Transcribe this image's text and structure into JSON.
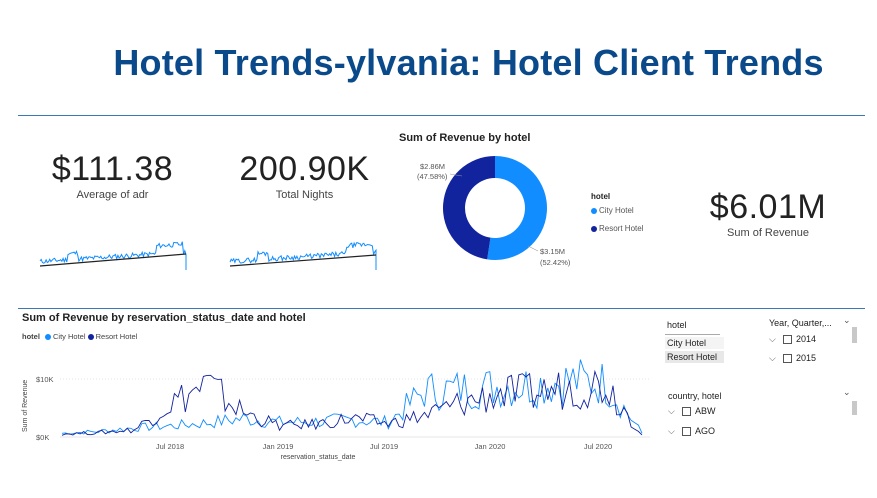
{
  "title": "Hotel Trends-ylvania: Hotel Client Trends",
  "colors": {
    "city": "#118DFF",
    "resort": "#12239E",
    "title": "#0a4a8b",
    "trend": "#222222"
  },
  "kpis": {
    "adr": {
      "value": "$111.38",
      "label": "Average of adr"
    },
    "nights": {
      "value": "200.90K",
      "label": "Total Nights"
    },
    "revenue": {
      "value": "$6.01M",
      "label": "Sum of Revenue"
    }
  },
  "donut": {
    "title": "Sum of Revenue by hotel",
    "legend_title": "hotel",
    "slices": [
      {
        "name": "City Hotel",
        "value_label": "$3.15M",
        "pct_label": "(52.42%)",
        "pct": 52.42
      },
      {
        "name": "Resort Hotel",
        "value_label": "$2.86M",
        "pct_label": "(47.58%)",
        "pct": 47.58
      }
    ]
  },
  "linechart": {
    "title": "Sum of Revenue by reservation_status_date and hotel",
    "legend_title": "hotel",
    "legend": [
      "City Hotel",
      "Resort Hotel"
    ],
    "ylabel": "Sum of Revenue",
    "xlabel": "reservation_status_date",
    "yticks": [
      "$10K",
      "$0K"
    ],
    "xticks": [
      "Jul 2018",
      "Jan 2019",
      "Jul 2019",
      "Jan 2020",
      "Jul 2020"
    ]
  },
  "chart_data": [
    {
      "type": "pie",
      "title": "Sum of Revenue by hotel",
      "categories": [
        "City Hotel",
        "Resort Hotel"
      ],
      "values": [
        3.15,
        2.86
      ],
      "unit": "$M"
    },
    {
      "type": "line",
      "title": "Sum of Revenue by reservation_status_date and hotel",
      "xlabel": "reservation_status_date",
      "ylabel": "Sum of Revenue",
      "x": [
        "2018-01",
        "2018-03",
        "2018-05",
        "2018-07",
        "2018-08",
        "2018-10",
        "2019-01",
        "2019-04",
        "2019-07",
        "2019-10",
        "2020-01",
        "2020-02",
        "2020-04",
        "2020-06",
        "2020-07",
        "2020-08",
        "2020-09"
      ],
      "ylim": [
        0,
        14000
      ],
      "series": [
        {
          "name": "City Hotel",
          "values": [
            600,
            900,
            1500,
            1800,
            2300,
            3000,
            2400,
            2500,
            2800,
            2400,
            7500,
            7800,
            8200,
            8500,
            9200,
            8800,
            600
          ]
        },
        {
          "name": "Resort Hotel",
          "values": [
            500,
            700,
            1200,
            5500,
            8500,
            4000,
            1800,
            2100,
            3000,
            2200,
            3500,
            5500,
            7000,
            7200,
            8000,
            8700,
            500
          ]
        }
      ]
    }
  ],
  "slicers": {
    "hotel": {
      "title": "hotel",
      "items": [
        "City Hotel",
        "Resort Hotel"
      ]
    },
    "year": {
      "title": "Year, Quarter,...",
      "items": [
        "2014",
        "2015"
      ]
    },
    "country": {
      "title": "country, hotel",
      "items": [
        "ABW",
        "AGO"
      ]
    }
  }
}
